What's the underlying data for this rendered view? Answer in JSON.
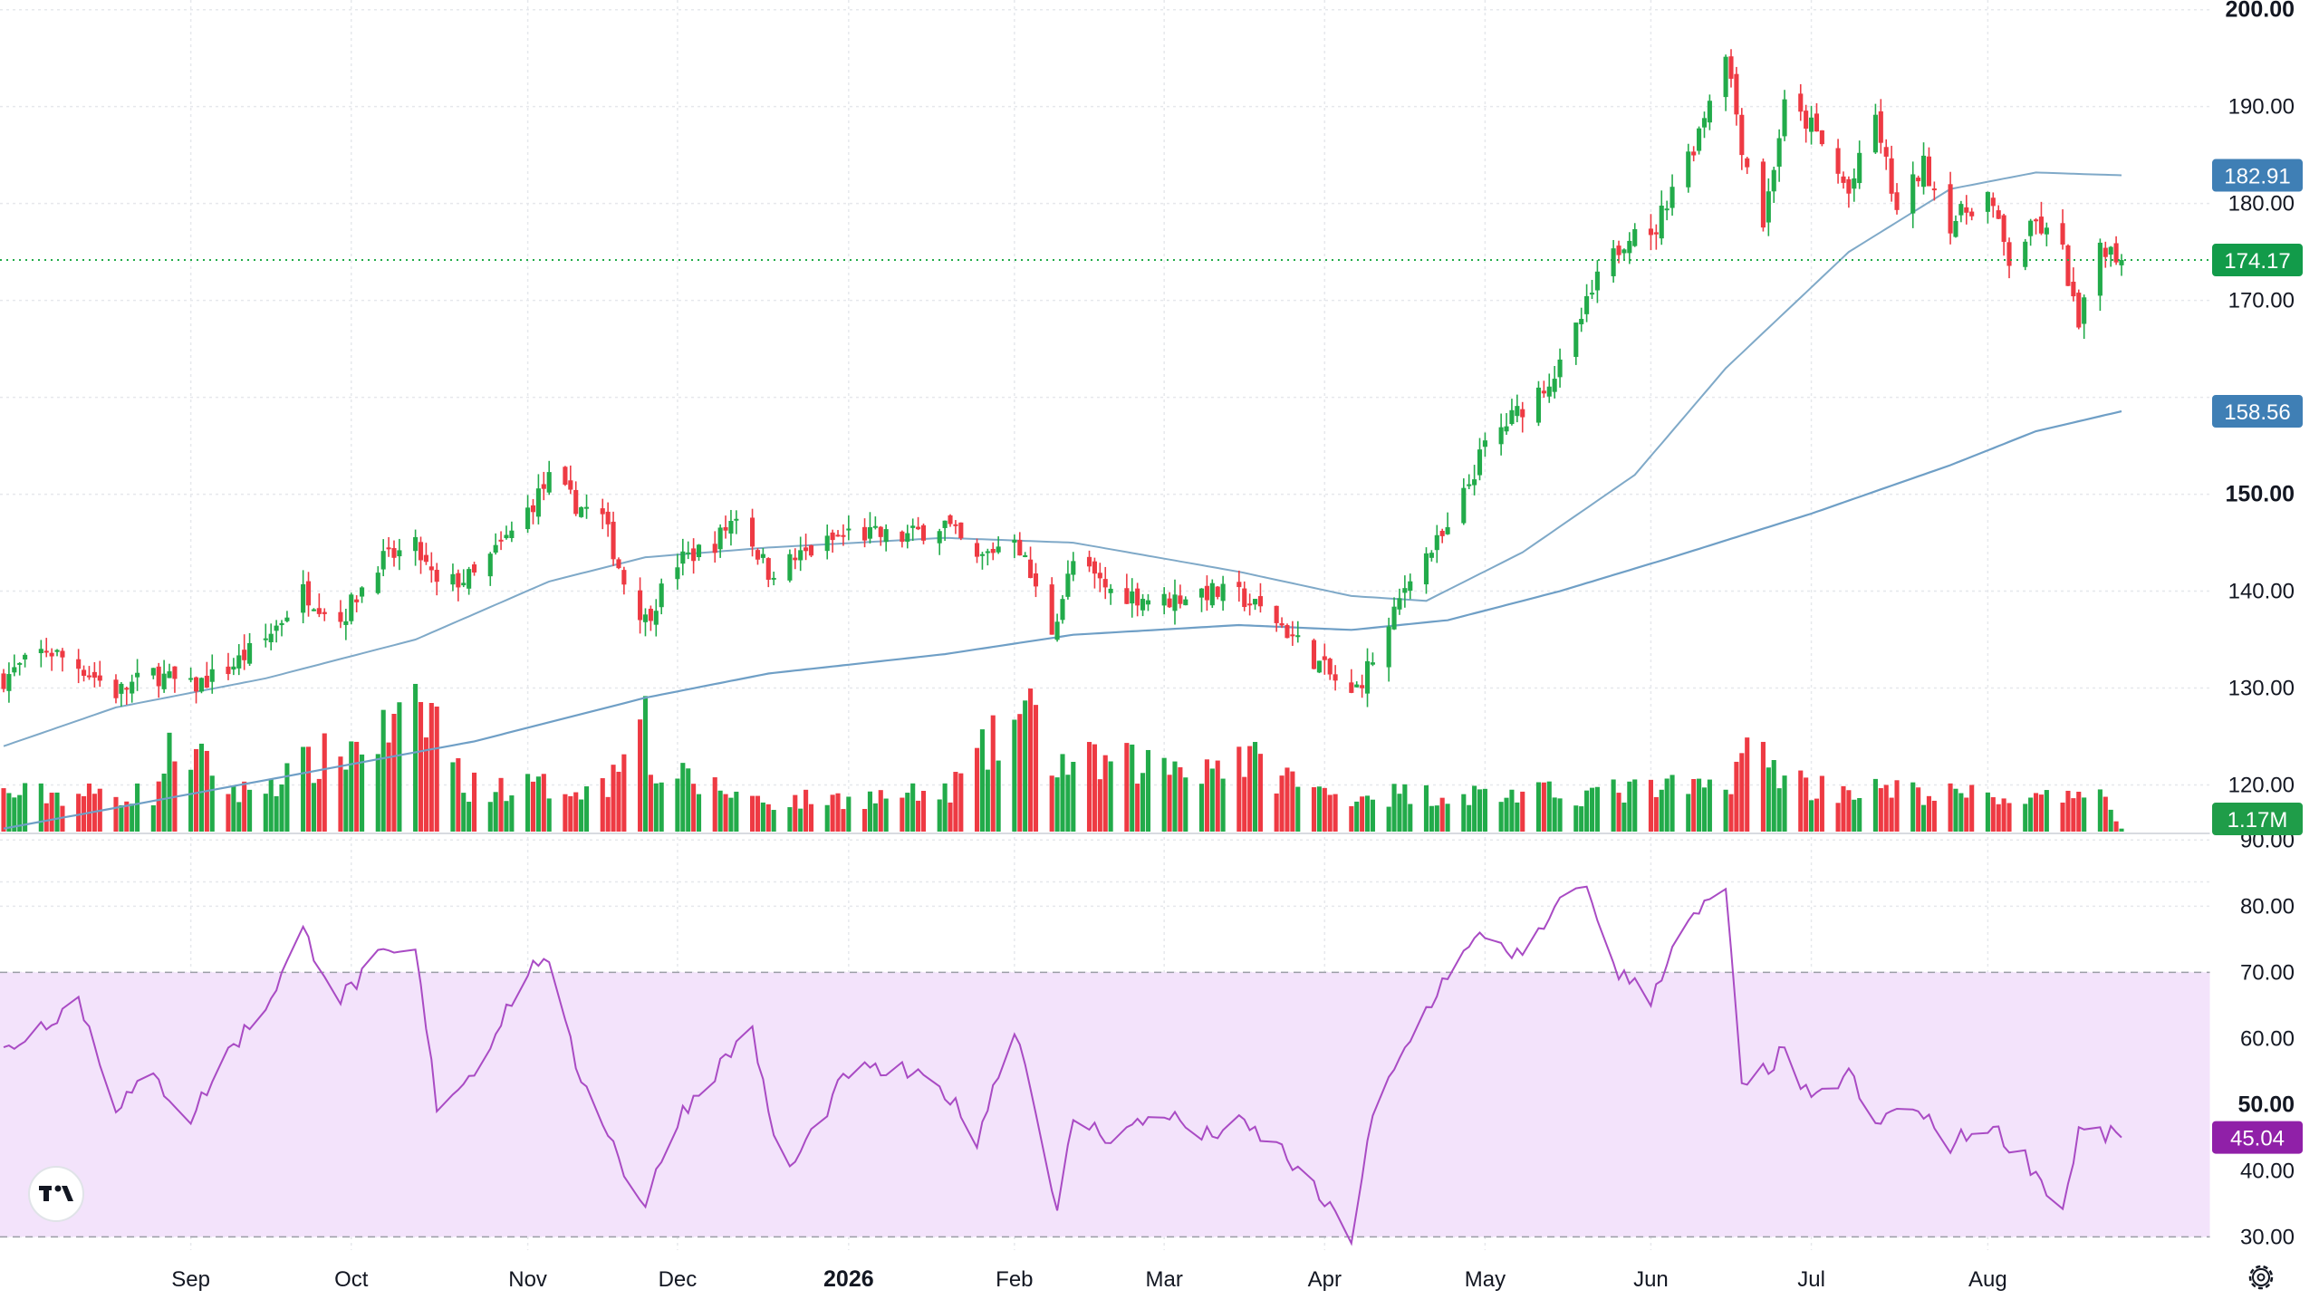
{
  "colors": {
    "up": "#22ab4a",
    "down": "#ee3a43",
    "ma_short": "#7fa9c8",
    "ma_long": "#6f9fc6",
    "rsi_line": "#a94bc4",
    "rsi_band": "#f3e3fb",
    "rsi_tag": "#9020a8",
    "ma_tag": "#3f7fb5",
    "price_tag": "#129b4a",
    "vol_tag": "#1f9d49",
    "grid": "#e6e8ec",
    "axis_text": "#131722"
  },
  "price_tags": {
    "ma_short": "182.91",
    "last": "174.17",
    "ma_long": "158.56"
  },
  "volume_tag": "1.17M",
  "rsi_tag": "45.04",
  "icons": {
    "logo": "tradingview-logo-icon",
    "settings": "gear-icon"
  },
  "chart_data": {
    "type": "candlestick",
    "price_axis": {
      "range": [
        115,
        201
      ],
      "ticks": [
        "200.00",
        "190.00",
        "180.00",
        "170.00",
        "150.00",
        "140.00",
        "130.00",
        "120.00"
      ],
      "bold_ticks": [
        "200.00",
        "150.00"
      ]
    },
    "rsi_axis": {
      "range": [
        28,
        91
      ],
      "ticks": [
        "90.00",
        "80.00",
        "70.00",
        "60.00",
        "50.00",
        "40.00",
        "30.00"
      ],
      "bold_ticks": [
        "50.00"
      ],
      "band": [
        30,
        70
      ]
    },
    "x_axis": {
      "labels": [
        {
          "text": "Sep",
          "date": "2025-09-01"
        },
        {
          "text": "Oct",
          "date": "2025-10-01"
        },
        {
          "text": "Nov",
          "date": "2025-11-03"
        },
        {
          "text": "Dec",
          "date": "2025-12-01"
        },
        {
          "text": "2026",
          "date": "2026-01-02",
          "bold": true
        },
        {
          "text": "Feb",
          "date": "2026-02-02"
        },
        {
          "text": "Mar",
          "date": "2026-03-02"
        },
        {
          "text": "Apr",
          "date": "2026-04-01"
        },
        {
          "text": "May",
          "date": "2026-05-01"
        },
        {
          "text": "Jun",
          "date": "2026-06-01"
        },
        {
          "text": "Jul",
          "date": "2026-07-01"
        },
        {
          "text": "Aug",
          "date": "2026-08-03"
        }
      ]
    },
    "close_path": [
      [
        "2025-07-28",
        131
      ],
      [
        "2025-08-05",
        134
      ],
      [
        "2025-08-12",
        132
      ],
      [
        "2025-08-18",
        129.5
      ],
      [
        "2025-08-25",
        131.5
      ],
      [
        "2025-09-01",
        130
      ],
      [
        "2025-09-08",
        132
      ],
      [
        "2025-09-15",
        135
      ],
      [
        "2025-09-22",
        140
      ],
      [
        "2025-09-29",
        137
      ],
      [
        "2025-10-06",
        143
      ],
      [
        "2025-10-13",
        144.5
      ],
      [
        "2025-10-17",
        140.5
      ],
      [
        "2025-10-24",
        141.5
      ],
      [
        "2025-10-31",
        146
      ],
      [
        "2025-11-07",
        151.5
      ],
      [
        "2025-11-12",
        149
      ],
      [
        "2025-11-17",
        147.5
      ],
      [
        "2025-11-21",
        141
      ],
      [
        "2025-11-25",
        137
      ],
      [
        "2025-12-01",
        143
      ],
      [
        "2025-12-08",
        145
      ],
      [
        "2025-12-12",
        148
      ],
      [
        "2025-12-18",
        142
      ],
      [
        "2026-01-02",
        146
      ],
      [
        "2026-01-12",
        145.5
      ],
      [
        "2026-01-20",
        147
      ],
      [
        "2026-01-26",
        143
      ],
      [
        "2026-02-02",
        146
      ],
      [
        "2026-02-06",
        140
      ],
      [
        "2026-02-09",
        136
      ],
      [
        "2026-02-13",
        143
      ],
      [
        "2026-02-20",
        140
      ],
      [
        "2026-03-02",
        139
      ],
      [
        "2026-03-09",
        140
      ],
      [
        "2026-03-16",
        139.5
      ],
      [
        "2026-03-23",
        137
      ],
      [
        "2026-03-30",
        133
      ],
      [
        "2026-04-06",
        129
      ],
      [
        "2026-04-13",
        136
      ],
      [
        "2026-04-17",
        142
      ],
      [
        "2026-04-24",
        146
      ],
      [
        "2026-05-01",
        155
      ],
      [
        "2026-05-08",
        159
      ],
      [
        "2026-05-15",
        163
      ],
      [
        "2026-05-22",
        172
      ],
      [
        "2026-05-29",
        178
      ],
      [
        "2026-06-01",
        176
      ],
      [
        "2026-06-05",
        182
      ],
      [
        "2026-06-09",
        186
      ],
      [
        "2026-06-15",
        196
      ],
      [
        "2026-06-18",
        186
      ],
      [
        "2026-06-22",
        178
      ],
      [
        "2026-06-26",
        190
      ],
      [
        "2026-07-01",
        188
      ],
      [
        "2026-07-08",
        181
      ],
      [
        "2026-07-13",
        189
      ],
      [
        "2026-07-17",
        179
      ],
      [
        "2026-07-22",
        184
      ],
      [
        "2026-07-27",
        178
      ],
      [
        "2026-08-03",
        181
      ],
      [
        "2026-08-07",
        174
      ],
      [
        "2026-08-12",
        178
      ],
      [
        "2026-08-17",
        175
      ],
      [
        "2026-08-20",
        167
      ],
      [
        "2026-08-24",
        176
      ],
      [
        "2026-08-28",
        174.17
      ]
    ],
    "ma_short_path": [
      [
        "2025-07-28",
        124
      ],
      [
        "2025-08-18",
        128
      ],
      [
        "2025-09-15",
        131
      ],
      [
        "2025-10-13",
        135
      ],
      [
        "2025-11-07",
        141
      ],
      [
        "2025-11-25",
        143.5
      ],
      [
        "2025-12-18",
        144.5
      ],
      [
        "2026-01-20",
        145.5
      ],
      [
        "2026-02-13",
        145
      ],
      [
        "2026-03-16",
        142
      ],
      [
        "2026-04-06",
        139.5
      ],
      [
        "2026-04-20",
        139
      ],
      [
        "2026-05-08",
        144
      ],
      [
        "2026-05-29",
        152
      ],
      [
        "2026-06-15",
        163
      ],
      [
        "2026-07-08",
        175
      ],
      [
        "2026-07-27",
        181.5
      ],
      [
        "2026-08-12",
        183.2
      ],
      [
        "2026-08-28",
        182.91
      ]
    ],
    "ma_long_path": [
      [
        "2025-07-28",
        115.5
      ],
      [
        "2025-09-15",
        120.5
      ],
      [
        "2025-10-24",
        124.5
      ],
      [
        "2025-11-25",
        129
      ],
      [
        "2025-12-18",
        131.5
      ],
      [
        "2026-01-20",
        133.5
      ],
      [
        "2026-02-13",
        135.5
      ],
      [
        "2026-03-16",
        136.5
      ],
      [
        "2026-04-06",
        136
      ],
      [
        "2026-04-24",
        137
      ],
      [
        "2026-05-15",
        140
      ],
      [
        "2026-06-05",
        143.5
      ],
      [
        "2026-07-01",
        148
      ],
      [
        "2026-07-27",
        153
      ],
      [
        "2026-08-12",
        156.5
      ],
      [
        "2026-08-28",
        158.56
      ]
    ],
    "volume_path": [
      [
        "2025-07-28",
        5
      ],
      [
        "2025-08-25",
        5
      ],
      [
        "2025-08-29",
        12
      ],
      [
        "2025-09-10",
        5
      ],
      [
        "2025-10-17",
        16
      ],
      [
        "2025-10-22",
        6
      ],
      [
        "2025-11-18",
        6
      ],
      [
        "2025-11-24",
        22
      ],
      [
        "2025-11-26",
        8
      ],
      [
        "2025-12-18",
        4
      ],
      [
        "2026-01-20",
        5
      ],
      [
        "2026-02-04",
        16
      ],
      [
        "2026-02-10",
        9
      ],
      [
        "2026-03-09",
        9
      ],
      [
        "2026-03-16",
        10
      ],
      [
        "2026-04-01",
        5
      ],
      [
        "2026-05-15",
        5
      ],
      [
        "2026-06-15",
        6
      ],
      [
        "2026-06-18",
        11
      ],
      [
        "2026-07-01",
        6
      ],
      [
        "2026-08-20",
        4
      ],
      [
        "2026-08-24",
        7
      ],
      [
        "2026-08-28",
        0.4
      ]
    ],
    "volume_range": [
      0,
      23
    ],
    "rsi_path": [
      [
        "2025-07-28",
        58
      ],
      [
        "2025-08-04",
        62
      ],
      [
        "2025-08-11",
        66
      ],
      [
        "2025-08-18",
        50
      ],
      [
        "2025-08-25",
        54
      ],
      [
        "2025-09-01",
        48
      ],
      [
        "2025-09-08",
        58
      ],
      [
        "2025-09-15",
        65
      ],
      [
        "2025-09-22",
        76
      ],
      [
        "2025-09-29",
        66
      ],
      [
        "2025-10-06",
        72
      ],
      [
        "2025-10-13",
        73
      ],
      [
        "2025-10-17",
        50
      ],
      [
        "2025-10-24",
        55
      ],
      [
        "2025-10-31",
        66
      ],
      [
        "2025-11-06",
        73
      ],
      [
        "2025-11-12",
        56
      ],
      [
        "2025-11-17",
        48
      ],
      [
        "2025-11-21",
        40
      ],
      [
        "2025-11-25",
        35
      ],
      [
        "2025-12-01",
        48
      ],
      [
        "2025-12-08",
        55
      ],
      [
        "2025-12-15",
        62
      ],
      [
        "2025-12-18",
        48
      ],
      [
        "2025-12-22",
        40
      ],
      [
        "2026-01-02",
        55
      ],
      [
        "2026-01-12",
        55
      ],
      [
        "2026-01-20",
        52
      ],
      [
        "2026-01-26",
        45
      ],
      [
        "2026-02-02",
        62
      ],
      [
        "2026-02-06",
        50
      ],
      [
        "2026-02-10",
        33
      ],
      [
        "2026-02-13",
        48
      ],
      [
        "2026-02-20",
        45
      ],
      [
        "2026-03-02",
        49
      ],
      [
        "2026-03-09",
        45
      ],
      [
        "2026-03-16",
        47
      ],
      [
        "2026-03-23",
        44
      ],
      [
        "2026-03-30",
        37
      ],
      [
        "2026-04-06",
        30
      ],
      [
        "2026-04-10",
        48
      ],
      [
        "2026-04-17",
        60
      ],
      [
        "2026-04-24",
        70
      ],
      [
        "2026-05-01",
        76
      ],
      [
        "2026-05-08",
        72
      ],
      [
        "2026-05-15",
        80
      ],
      [
        "2026-05-19",
        84
      ],
      [
        "2026-05-26",
        70
      ],
      [
        "2026-06-01",
        66
      ],
      [
        "2026-06-05",
        74
      ],
      [
        "2026-06-09",
        78
      ],
      [
        "2026-06-15",
        83
      ],
      [
        "2026-06-18",
        52
      ],
      [
        "2026-06-22",
        55
      ],
      [
        "2026-06-26",
        58
      ],
      [
        "2026-07-01",
        50
      ],
      [
        "2026-07-08",
        55
      ],
      [
        "2026-07-13",
        46
      ],
      [
        "2026-07-17",
        50
      ],
      [
        "2026-07-22",
        48
      ],
      [
        "2026-07-27",
        44
      ],
      [
        "2026-08-03",
        47
      ],
      [
        "2026-08-10",
        42
      ],
      [
        "2026-08-17",
        34
      ],
      [
        "2026-08-20",
        46
      ],
      [
        "2026-08-28",
        45.04
      ]
    ]
  }
}
